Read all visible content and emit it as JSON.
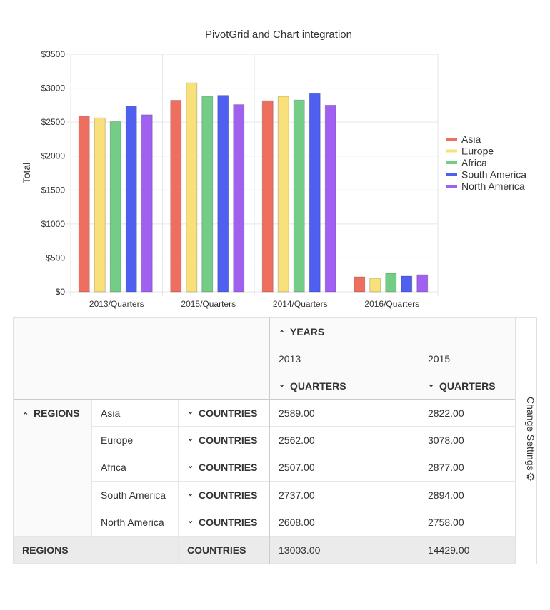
{
  "chart_data": {
    "type": "bar",
    "title": "PivotGrid and Chart integration",
    "ylabel": "Total",
    "xlabel": "",
    "ylim": [
      0,
      3500
    ],
    "yticks": [
      "$0",
      "$500",
      "$1000",
      "$1500",
      "$2000",
      "$2500",
      "$3000",
      "$3500"
    ],
    "categories": [
      "2013/Quarters",
      "2015/Quarters",
      "2014/Quarters",
      "2016/Quarters"
    ],
    "series": [
      {
        "name": "Asia",
        "color": "#ee6e5f",
        "values": [
          2589,
          2822,
          2815,
          220
        ]
      },
      {
        "name": "Europe",
        "color": "#f8e07a",
        "values": [
          2562,
          3078,
          2880,
          200
        ]
      },
      {
        "name": "Africa",
        "color": "#73cd87",
        "values": [
          2507,
          2877,
          2825,
          273
        ]
      },
      {
        "name": "South America",
        "color": "#4f5ff0",
        "values": [
          2737,
          2894,
          2920,
          231
        ]
      },
      {
        "name": "North America",
        "color": "#a060f0",
        "values": [
          2608,
          2758,
          2750,
          252
        ]
      }
    ],
    "legend": "right",
    "grid": true
  },
  "pivot": {
    "years_label": "YEARS",
    "years": [
      "2013",
      "2015"
    ],
    "quarters_label": "QUARTERS",
    "regions_label": "REGIONS",
    "countries_label": "COUNTRIES",
    "rows": [
      {
        "region": "Asia",
        "values": [
          "2589.00",
          "2822.00"
        ]
      },
      {
        "region": "Europe",
        "values": [
          "2562.00",
          "3078.00"
        ]
      },
      {
        "region": "Africa",
        "values": [
          "2507.00",
          "2877.00"
        ]
      },
      {
        "region": "South America",
        "values": [
          "2737.00",
          "2894.00"
        ]
      },
      {
        "region": "North America",
        "values": [
          "2608.00",
          "2758.00"
        ]
      }
    ],
    "total": {
      "regions": "REGIONS",
      "countries": "COUNTRIES",
      "values": [
        "13003.00",
        "14429.00"
      ]
    },
    "settings_label": "Change Settings"
  }
}
